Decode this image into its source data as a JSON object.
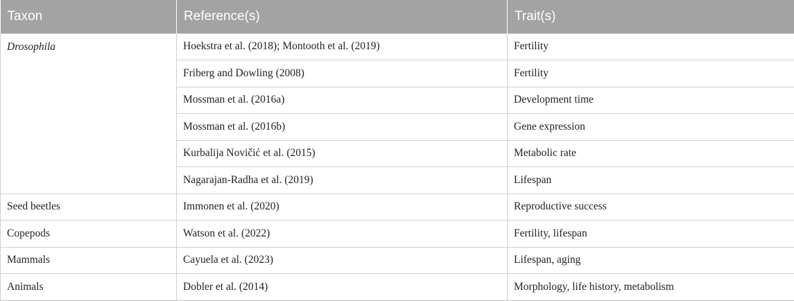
{
  "table": {
    "headers": [
      "Taxon",
      "Reference(s)",
      "Trait(s)"
    ],
    "groups": [
      {
        "taxon": "Drosophila",
        "italic": true,
        "rows": [
          {
            "reference": "Hoekstra et al. (2018); Montooth et al. (2019)",
            "trait": "Fertility"
          },
          {
            "reference": "Friberg and Dowling (2008)",
            "trait": "Fertility"
          },
          {
            "reference": "Mossman et al. (2016a)",
            "trait": "Development time"
          },
          {
            "reference": "Mossman et al. (2016b)",
            "trait": "Gene expression"
          },
          {
            "reference": "Kurbalija Novičić et al. (2015)",
            "trait": "Metabolic rate"
          },
          {
            "reference": "Nagarajan-Radha et al. (2019)",
            "trait": "Lifespan"
          }
        ]
      },
      {
        "taxon": "Seed beetles",
        "italic": false,
        "rows": [
          {
            "reference": "Immonen et al. (2020)",
            "trait": "Reproductive success"
          }
        ]
      },
      {
        "taxon": "Copepods",
        "italic": false,
        "rows": [
          {
            "reference": "Watson et al. (2022)",
            "trait": "Fertility, lifespan"
          }
        ]
      },
      {
        "taxon": "Mammals",
        "italic": false,
        "rows": [
          {
            "reference": "Cayuela et al. (2023)",
            "trait": "Lifespan, aging"
          }
        ]
      },
      {
        "taxon": "Animals",
        "italic": false,
        "rows": [
          {
            "reference": "Dobler et al. (2014)",
            "trait": "Morphology, life history, metabolism"
          }
        ]
      }
    ]
  },
  "colors": {
    "header_background": "#a3a3a3",
    "header_text": "#ffffff",
    "body_text": "#222222",
    "grid_line": "#cfcfcf"
  }
}
